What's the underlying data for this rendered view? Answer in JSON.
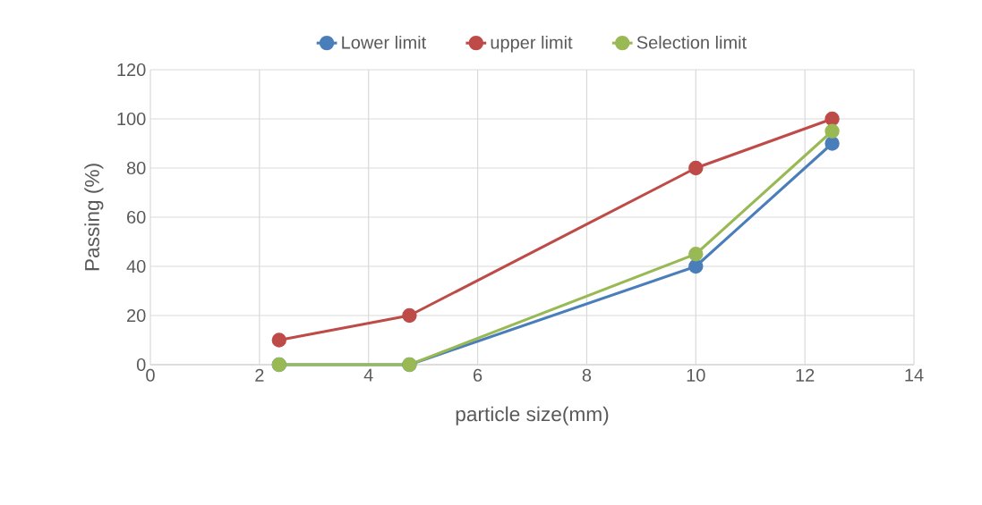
{
  "chart_data": {
    "type": "line",
    "xlabel": "particle size(mm)",
    "ylabel": "Passing (%)",
    "x": [
      2.36,
      4.75,
      10,
      12.5
    ],
    "series": [
      {
        "name": "Lower limit",
        "color": "#4a7ebb",
        "values": [
          0,
          0,
          40,
          90
        ]
      },
      {
        "name": "upper limit",
        "color": "#be4b48",
        "values": [
          10,
          20,
          80,
          100
        ]
      },
      {
        "name": "Selection limit",
        "color": "#98b954",
        "values": [
          0,
          0,
          45,
          95
        ]
      }
    ],
    "xlim": [
      0,
      14
    ],
    "xticks": [
      0,
      2,
      4,
      6,
      8,
      10,
      12,
      14
    ],
    "ylim": [
      0,
      120
    ],
    "yticks": [
      0,
      20,
      40,
      60,
      80,
      100,
      120
    ],
    "grid": true,
    "legend": "top",
    "marker": "circle",
    "line_style": "solid"
  }
}
